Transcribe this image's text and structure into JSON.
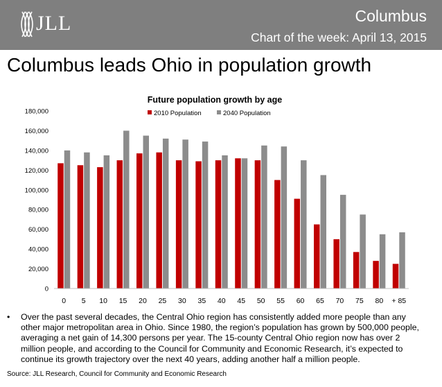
{
  "header": {
    "logo_text": "JLL",
    "title": "Columbus",
    "subtitle": "Chart of the week: April 13, 2015"
  },
  "headline": "Columbus leads Ohio in population growth",
  "chart_data": {
    "type": "bar",
    "title": "Future population growth by age",
    "categories": [
      "0",
      "5",
      "10",
      "15",
      "20",
      "25",
      "30",
      "35",
      "40",
      "45",
      "50",
      "55",
      "60",
      "65",
      "70",
      "75",
      "80",
      "+ 85"
    ],
    "series": [
      {
        "name": "2010 Population",
        "color": "#c00000",
        "values": [
          127000,
          125000,
          123000,
          130000,
          137000,
          138000,
          130000,
          129000,
          130000,
          132000,
          130000,
          110000,
          91000,
          65000,
          50000,
          37000,
          28000,
          25000
        ]
      },
      {
        "name": "2040 Population",
        "color": "#8c8c8c",
        "values": [
          140000,
          138000,
          135000,
          160000,
          155000,
          152000,
          151000,
          149000,
          135000,
          132000,
          145000,
          144000,
          130000,
          115000,
          95000,
          75000,
          55000,
          57000
        ]
      }
    ],
    "ylim": [
      0,
      180000
    ],
    "yticks": [
      0,
      20000,
      40000,
      60000,
      80000,
      100000,
      120000,
      140000,
      160000,
      180000
    ],
    "ytick_labels": [
      "0",
      "20,000",
      "40,000",
      "60,000",
      "80,000",
      "100,000",
      "120,000",
      "140,000",
      "160,000",
      "180,000"
    ],
    "legend": "top",
    "grid": false
  },
  "body_text": "Over the past several decades, the Central Ohio region has consistently added more people than any other major metropolitan area in Ohio. Since 1980, the region’s population has grown by 500,000 people, averaging a net gain of 14,300 persons per year. The 15-county Central Ohio region now has over 2 million people, and according to the Council for Community and Economic Research, it’s expected to continue its growth trajectory over the next 40 years, adding another half a million people.",
  "source": "Source: JLL Research, Council for Community and Economic Research"
}
